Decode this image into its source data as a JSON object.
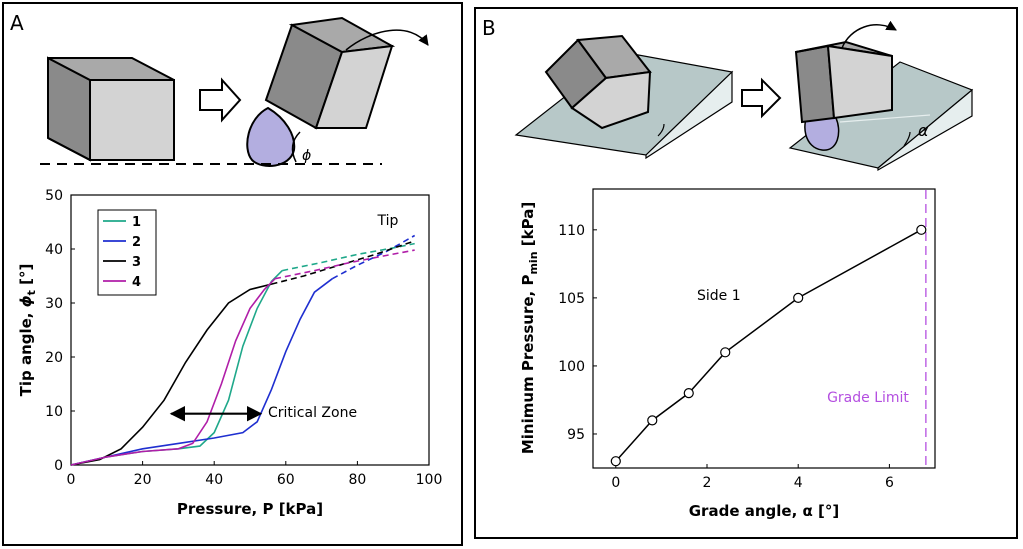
{
  "panel_a": {
    "label": "A",
    "tilt_angle_symbol": "ϕ",
    "plot": {
      "xlabel": "Pressure, P [kPa]",
      "ylabel_main": "Tip angle, ",
      "ylabel_symbol": "ϕ",
      "ylabel_sub": "t",
      "ylabel_unit": " [°]",
      "annotation_tip": "Tip",
      "annotation_zone": "Critical Zone"
    }
  },
  "panel_b": {
    "label": "B",
    "grade_symbol": "α",
    "plot": {
      "xlabel": "Grade angle, α [°]",
      "ylabel_main": "Minimum Pressure, P",
      "ylabel_sub": "min",
      "ylabel_unit": " [kPa]",
      "annotation_side": "Side 1",
      "annotation_limit": "Grade Limit"
    }
  },
  "chart_data": [
    {
      "type": "line",
      "panel": "A",
      "xlabel": "Pressure, P [kPa]",
      "ylabel": "Tip angle, ϕt [°]",
      "xlim": [
        0,
        100
      ],
      "ylim": [
        0,
        50
      ],
      "xticks": [
        0,
        20,
        40,
        60,
        80,
        100
      ],
      "yticks": [
        0,
        10,
        20,
        30,
        40,
        50
      ],
      "grid": false,
      "legend": "top-left",
      "series": [
        {
          "name": "1",
          "color": "#1fa88a",
          "solid": [
            [
              0,
              0
            ],
            [
              10,
              1.5
            ],
            [
              20,
              2.5
            ],
            [
              30,
              3
            ],
            [
              36,
              3.5
            ],
            [
              40,
              6
            ],
            [
              44,
              12
            ],
            [
              48,
              22
            ],
            [
              52,
              29
            ],
            [
              56,
              34
            ],
            [
              59,
              36
            ]
          ],
          "dashed": [
            [
              59,
              36
            ],
            [
              70,
              37.5
            ],
            [
              80,
              39
            ],
            [
              90,
              40.2
            ],
            [
              96,
              41
            ]
          ]
        },
        {
          "name": "2",
          "color": "#1f2fd0",
          "solid": [
            [
              0,
              0
            ],
            [
              10,
              1.5
            ],
            [
              20,
              3
            ],
            [
              30,
              4
            ],
            [
              40,
              5
            ],
            [
              48,
              6
            ],
            [
              52,
              8
            ],
            [
              56,
              14
            ],
            [
              60,
              21
            ],
            [
              64,
              27
            ],
            [
              68,
              32
            ],
            [
              73,
              34.5
            ]
          ],
          "dashed": [
            [
              73,
              34.5
            ],
            [
              80,
              37
            ],
            [
              88,
              39.5
            ],
            [
              96,
              42.5
            ]
          ]
        },
        {
          "name": "3",
          "color": "#000000",
          "solid": [
            [
              0,
              0
            ],
            [
              8,
              1
            ],
            [
              14,
              3
            ],
            [
              20,
              7
            ],
            [
              26,
              12
            ],
            [
              32,
              19
            ],
            [
              38,
              25
            ],
            [
              44,
              30
            ],
            [
              50,
              32.5
            ],
            [
              56,
              33.5
            ]
          ],
          "dashed": [
            [
              56,
              33.5
            ],
            [
              65,
              35
            ],
            [
              75,
              37
            ],
            [
              85,
              39
            ],
            [
              96,
              41.5
            ]
          ]
        },
        {
          "name": "4",
          "color": "#b01ea8",
          "solid": [
            [
              0,
              0
            ],
            [
              10,
              1.5
            ],
            [
              20,
              2.5
            ],
            [
              30,
              3
            ],
            [
              34,
              4
            ],
            [
              38,
              8
            ],
            [
              42,
              15
            ],
            [
              46,
              23
            ],
            [
              50,
              29
            ],
            [
              54,
              32.5
            ],
            [
              57,
              34.5
            ]
          ],
          "dashed": [
            [
              57,
              34.5
            ],
            [
              68,
              36
            ],
            [
              78,
              37.5
            ],
            [
              88,
              38.8
            ],
            [
              96,
              39.8
            ]
          ]
        }
      ],
      "annotations": [
        {
          "text": "Tip"
        },
        {
          "text": "Critical Zone",
          "arrow_x_range": [
            28,
            53
          ],
          "y": 9.5
        }
      ]
    },
    {
      "type": "line",
      "panel": "B",
      "xlabel": "Grade angle, α [°]",
      "ylabel": "Minimum Pressure, Pmin [kPa]",
      "xlim": [
        -0.5,
        7
      ],
      "ylim": [
        92.5,
        113
      ],
      "xticks": [
        0,
        2,
        4,
        6
      ],
      "yticks": [
        95,
        100,
        105,
        110
      ],
      "grid": false,
      "markers": "open-circle",
      "series": [
        {
          "color": "#000000",
          "x": [
            0,
            0.8,
            1.6,
            2.4,
            4.0,
            6.7
          ],
          "y": [
            93,
            96,
            98,
            101,
            105,
            110
          ]
        }
      ],
      "reference_line": {
        "x": 6.8,
        "label": "Grade Limit",
        "color": "#b44fe0",
        "style": "dashed"
      },
      "annotations": [
        {
          "text": "Side 1"
        }
      ]
    }
  ]
}
